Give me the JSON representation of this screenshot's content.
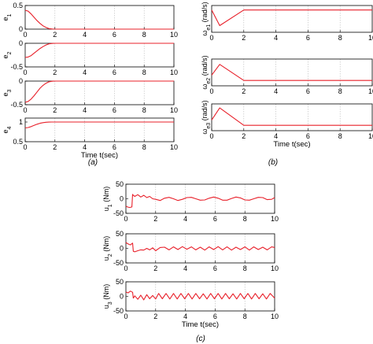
{
  "colors": {
    "signal": "#e8202a",
    "grid": "#b8b8b8",
    "axis": "#000000"
  },
  "panel_labels": {
    "a": "(a)",
    "b": "(b)",
    "c": "(c)"
  },
  "chart_data": [
    {
      "type": "line",
      "ylabel": "e",
      "ylabel_sub": "1",
      "xlim": [
        0,
        10
      ],
      "ylim": [
        0,
        0.5
      ],
      "yticks": [
        "0",
        "0.5"
      ],
      "xticks": [
        "0",
        "2",
        "4",
        "6",
        "8",
        "10"
      ],
      "grid": true,
      "series": [
        {
          "x": [
            0,
            0.2,
            0.4,
            0.6,
            0.8,
            1.0,
            1.2,
            1.4,
            1.6,
            1.8,
            2.0,
            10
          ],
          "y": [
            0.4,
            0.38,
            0.32,
            0.25,
            0.18,
            0.12,
            0.07,
            0.035,
            0.012,
            0.003,
            0,
            0
          ]
        }
      ]
    },
    {
      "type": "line",
      "ylabel": "e",
      "ylabel_sub": "2",
      "xlim": [
        0,
        10
      ],
      "ylim": [
        -0.5,
        0
      ],
      "yticks": [
        "-0.5",
        "0"
      ],
      "xticks": [
        "0",
        "2",
        "4",
        "6",
        "8",
        "10"
      ],
      "grid": true,
      "series": [
        {
          "x": [
            0,
            0.2,
            0.4,
            0.6,
            0.8,
            1.0,
            1.2,
            1.4,
            1.6,
            1.8,
            2.0,
            10
          ],
          "y": [
            -0.3,
            -0.29,
            -0.26,
            -0.21,
            -0.16,
            -0.11,
            -0.07,
            -0.035,
            -0.012,
            -0.003,
            0,
            0
          ]
        }
      ]
    },
    {
      "type": "line",
      "ylabel": "e",
      "ylabel_sub": "3",
      "xlim": [
        0,
        10
      ],
      "ylim": [
        -0.5,
        0
      ],
      "yticks": [
        "-0.5",
        "0"
      ],
      "xticks": [
        "0",
        "2",
        "4",
        "6",
        "8",
        "10"
      ],
      "grid": true,
      "series": [
        {
          "x": [
            0,
            0.2,
            0.4,
            0.6,
            0.8,
            1.0,
            1.2,
            1.4,
            1.6,
            1.8,
            2.0,
            10
          ],
          "y": [
            -0.45,
            -0.43,
            -0.38,
            -0.31,
            -0.23,
            -0.15,
            -0.09,
            -0.045,
            -0.015,
            -0.004,
            0,
            0
          ]
        }
      ]
    },
    {
      "type": "line",
      "ylabel": "e",
      "ylabel_sub": "4",
      "xlim": [
        0,
        10
      ],
      "ylim": [
        0.5,
        1.1
      ],
      "yticks": [
        "0.5",
        "1"
      ],
      "xticks": [
        "0",
        "2",
        "4",
        "6",
        "8",
        "10"
      ],
      "xlabel": "Time t(sec)",
      "grid": true,
      "series": [
        {
          "x": [
            0,
            0.2,
            0.4,
            0.6,
            0.8,
            1.0,
            1.2,
            1.4,
            1.6,
            1.8,
            2.0,
            10
          ],
          "y": [
            0.85,
            0.86,
            0.885,
            0.915,
            0.945,
            0.968,
            0.984,
            0.993,
            0.998,
            1.0,
            1.0,
            1.0
          ]
        }
      ]
    },
    {
      "type": "line",
      "ylabel": "ω",
      "ylabel_sub": "e1",
      "ylabel_unit": " (rad/s)",
      "xlim": [
        0,
        10
      ],
      "ylim": [
        -1,
        0.2
      ],
      "yticks": [],
      "xticks": [
        "0",
        "2",
        "4",
        "6",
        "8",
        "10"
      ],
      "grid": true,
      "series": [
        {
          "x": [
            0,
            0.5,
            2.0,
            10
          ],
          "y": [
            0,
            -0.7,
            0,
            0
          ]
        }
      ]
    },
    {
      "type": "line",
      "ylabel": "ω",
      "ylabel_sub": "e2",
      "ylabel_unit": " (rad/s)",
      "xlim": [
        0,
        10
      ],
      "ylim": [
        -0.2,
        0.8
      ],
      "yticks": [],
      "xticks": [
        "0",
        "2",
        "4",
        "6",
        "8",
        "10"
      ],
      "grid": true,
      "series": [
        {
          "x": [
            0,
            0.5,
            2.0,
            10
          ],
          "y": [
            0.2,
            0.6,
            0,
            0
          ]
        }
      ]
    },
    {
      "type": "line",
      "ylabel": "ω",
      "ylabel_sub": "e3",
      "ylabel_unit": " (rad/s)",
      "xlim": [
        0,
        10
      ],
      "ylim": [
        -0.2,
        0.8
      ],
      "yticks": [],
      "xticks": [
        "0",
        "2",
        "4",
        "6",
        "8",
        "10"
      ],
      "xlabel": "Time t(sec)",
      "grid": true,
      "series": [
        {
          "x": [
            0,
            0.5,
            2.0,
            10
          ],
          "y": [
            0.2,
            0.65,
            0,
            0
          ]
        }
      ]
    },
    {
      "type": "line",
      "ylabel": "u",
      "ylabel_sub": "1",
      "ylabel_unit": " (Nm)",
      "xlim": [
        0,
        10
      ],
      "ylim": [
        -50,
        50
      ],
      "yticks": [
        "-50",
        "0",
        "50"
      ],
      "xticks": [
        "0",
        "2",
        "4",
        "6",
        "8",
        "10"
      ],
      "grid": true,
      "series": [
        {
          "x": [
            0,
            0.1,
            0.25,
            0.4,
            0.45,
            0.5,
            0.6,
            0.8,
            1.0,
            1.2,
            1.4,
            1.6,
            1.8,
            2.0,
            2.3,
            2.6,
            2.9,
            3.2,
            3.5,
            3.8,
            4.1,
            4.4,
            4.7,
            5.0,
            5.3,
            5.6,
            5.9,
            6.2,
            6.5,
            6.8,
            7.1,
            7.4,
            7.7,
            8.0,
            8.3,
            8.6,
            8.9,
            9.2,
            9.5,
            9.8,
            10
          ],
          "y": [
            -25,
            -28,
            -30,
            -28,
            15,
            12,
            8,
            14,
            6,
            12,
            4,
            8,
            0,
            -2,
            -6,
            2,
            5,
            0,
            -6,
            -2,
            4,
            5,
            0,
            -5,
            -4,
            2,
            6,
            2,
            -5,
            -5,
            1,
            6,
            3,
            -4,
            -5,
            0,
            5,
            4,
            -3,
            -2,
            4
          ]
        }
      ]
    },
    {
      "type": "line",
      "ylabel": "u",
      "ylabel_sub": "2",
      "ylabel_unit": " (Nm)",
      "xlim": [
        0,
        10
      ],
      "ylim": [
        -50,
        50
      ],
      "yticks": [
        "-50",
        "0",
        "50"
      ],
      "xticks": [
        "0",
        "2",
        "4",
        "6",
        "8",
        "10"
      ],
      "grid": true,
      "series": [
        {
          "x": [
            0,
            0.15,
            0.3,
            0.45,
            0.5,
            0.6,
            0.8,
            1.0,
            1.2,
            1.4,
            1.6,
            1.8,
            2.0,
            2.3,
            2.6,
            2.9,
            3.2,
            3.5,
            3.8,
            4.1,
            4.4,
            4.7,
            5.0,
            5.3,
            5.6,
            5.9,
            6.2,
            6.5,
            6.8,
            7.1,
            7.4,
            7.7,
            8.0,
            8.3,
            8.6,
            8.9,
            9.2,
            9.5,
            9.8,
            10
          ],
          "y": [
            20,
            15,
            12,
            18,
            -10,
            -12,
            -8,
            -5,
            -6,
            0,
            -5,
            2,
            -8,
            3,
            4,
            -5,
            5,
            -4,
            6,
            -3,
            5,
            -5,
            4,
            -6,
            5,
            -4,
            6,
            -5,
            5,
            -6,
            4,
            -4,
            5,
            -6,
            5,
            -4,
            4,
            -5,
            5,
            3
          ]
        }
      ]
    },
    {
      "type": "line",
      "ylabel": "u",
      "ylabel_sub": "3",
      "ylabel_unit": " (Nm)",
      "xlim": [
        0,
        10
      ],
      "ylim": [
        -50,
        50
      ],
      "yticks": [
        "-50",
        "0",
        "50"
      ],
      "xticks": [
        "0",
        "2",
        "4",
        "6",
        "8",
        "10"
      ],
      "xlabel": "Time t(sec)",
      "grid": true,
      "series": [
        {
          "x": [
            0,
            0.15,
            0.3,
            0.45,
            0.5,
            0.6,
            0.8,
            1.0,
            1.2,
            1.4,
            1.6,
            1.8,
            2.0,
            2.2,
            2.45,
            2.7,
            2.95,
            3.2,
            3.45,
            3.7,
            3.95,
            4.2,
            4.45,
            4.7,
            4.95,
            5.2,
            5.45,
            5.7,
            5.95,
            6.2,
            6.45,
            6.7,
            6.95,
            7.2,
            7.45,
            7.7,
            7.95,
            8.2,
            8.45,
            8.7,
            8.95,
            9.2,
            9.45,
            9.7,
            10
          ],
          "y": [
            15,
            12,
            18,
            14,
            -6,
            2,
            -10,
            4,
            -12,
            6,
            -8,
            3,
            -9,
            10,
            -8,
            10,
            -9,
            10,
            -9,
            10,
            -8,
            10,
            -9,
            10,
            -8,
            9,
            -9,
            10,
            -8,
            10,
            -9,
            10,
            -8,
            9,
            -9,
            10,
            -8,
            10,
            -9,
            10,
            -8,
            9,
            -9,
            10,
            -6
          ]
        }
      ]
    }
  ]
}
